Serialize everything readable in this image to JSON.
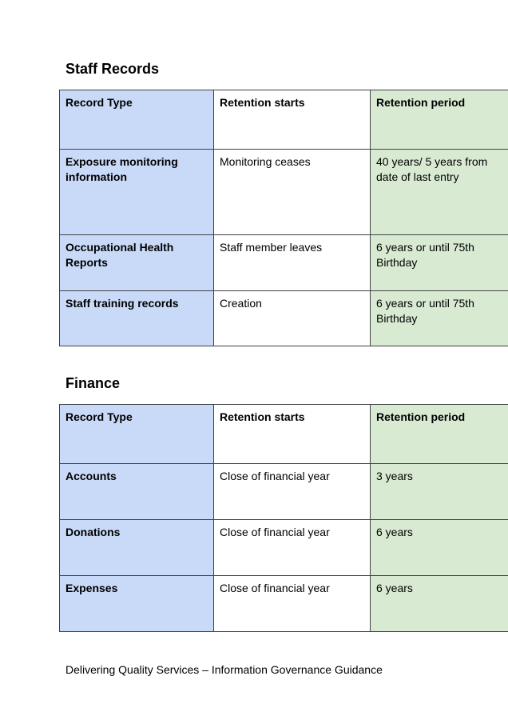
{
  "page": {
    "footer": "Delivering Quality Services – Information Governance Guidance"
  },
  "colors": {
    "record_type_col": "#c9daf8",
    "retention_period_col": "#d9ead3",
    "border_col": "#3f4245"
  },
  "sections": [
    {
      "title": "Staff Records",
      "table": {
        "headers": [
          "Record Type",
          "Retention starts",
          "Retention period"
        ],
        "rows": [
          [
            "Exposure monitoring information",
            "Monitoring ceases",
            "40 years/ 5 years from date of last entry"
          ],
          [
            "Occupational Health Reports",
            "Staff member leaves",
            "6 years or until 75th Birthday"
          ],
          [
            "Staff training records",
            "Creation",
            "6 years or until 75th Birthday"
          ]
        ]
      }
    },
    {
      "title": "Finance",
      "table": {
        "headers": [
          "Record Type",
          "Retention starts",
          "Retention period"
        ],
        "rows": [
          [
            "Accounts",
            "Close of financial year",
            "3 years"
          ],
          [
            "Donations",
            "Close of financial year",
            "6 years"
          ],
          [
            "Expenses",
            "Close of financial year",
            "6 years"
          ]
        ]
      }
    }
  ]
}
